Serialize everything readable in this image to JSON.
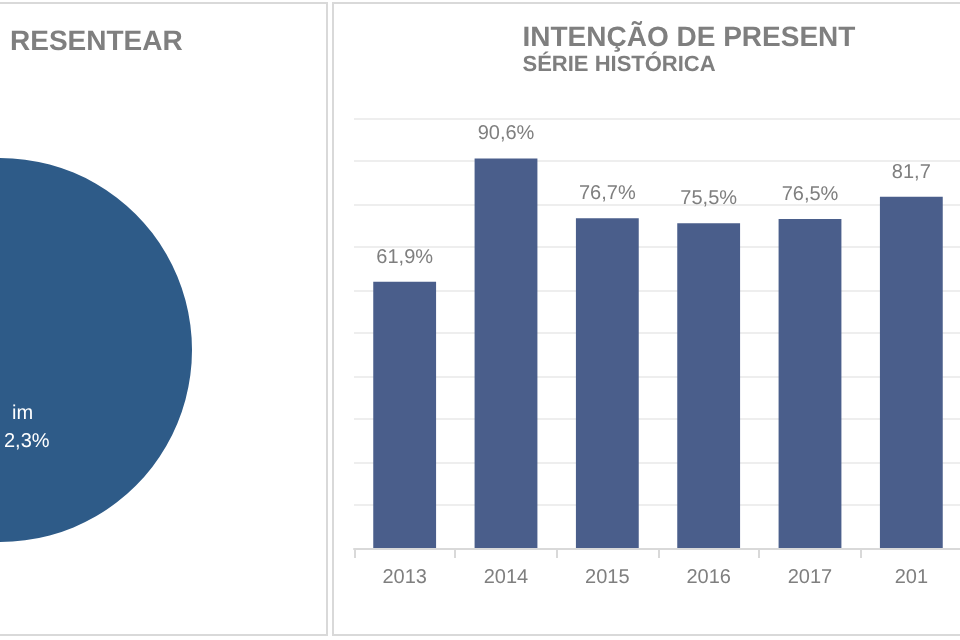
{
  "chart_data": [
    {
      "type": "other",
      "title": "RESENTEAR",
      "color": "#2e5b88",
      "annotations": [
        "im",
        "2,3%"
      ]
    },
    {
      "type": "bar",
      "title": "INTENÇÃO DE PRESENT",
      "subtitle": "SÉRIE HISTÓRICA",
      "categories": [
        "2013",
        "2014",
        "2015",
        "2016",
        "2017",
        "201"
      ],
      "values": [
        61.9,
        90.6,
        76.7,
        75.5,
        76.5,
        81.7
      ],
      "value_labels": [
        "61,9%",
        "90,6%",
        "76,7%",
        "75,5%",
        "76,5%",
        "81,7"
      ],
      "color": "#4a5e8b",
      "ylim": [
        0,
        100
      ],
      "yticks": [
        {
          "value": 0,
          "label": null
        },
        {
          "value": 10,
          "label": null
        },
        {
          "value": 20,
          "label": null
        },
        {
          "value": 30,
          "label": null
        },
        {
          "value": 40,
          "label": null
        },
        {
          "value": 50,
          "label": null
        },
        {
          "value": 60,
          "label": null
        },
        {
          "value": 70,
          "label": null
        },
        {
          "value": 80,
          "label": null
        },
        {
          "value": 90,
          "label": null
        },
        {
          "value": 100,
          "label": null
        }
      ],
      "grid": "y",
      "tick_labels": "x"
    }
  ]
}
